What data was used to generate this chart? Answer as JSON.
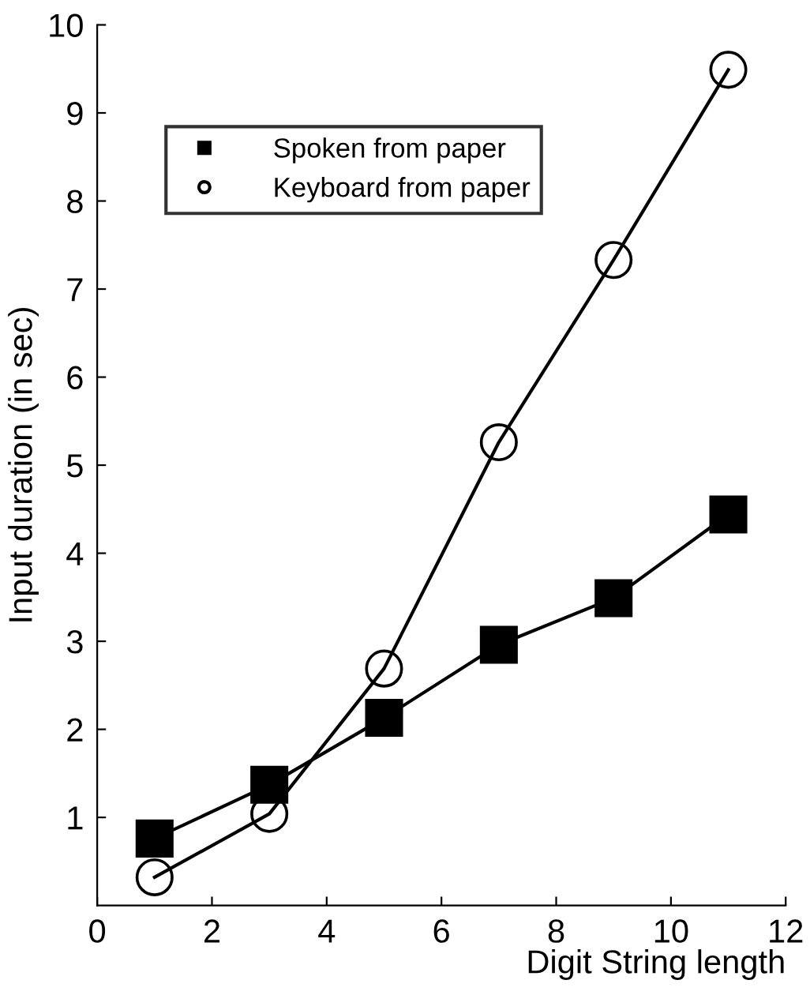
{
  "chart_data": {
    "type": "line",
    "xlabel": "Digit String length",
    "ylabel": "Input duration (in sec)",
    "x": [
      1,
      3,
      5,
      7,
      9,
      11
    ],
    "series": [
      {
        "name": "Spoken from paper",
        "color": "#000000",
        "marker": "square",
        "values": [
          0.76,
          1.37,
          2.13,
          2.96,
          3.49,
          4.44
        ]
      },
      {
        "name": "Keyboard from paper",
        "color": "#000000",
        "marker": "circle",
        "values": [
          0.32,
          1.04,
          2.69,
          5.26,
          7.33,
          9.49
        ]
      }
    ],
    "xlim": [
      0,
      12
    ],
    "xticks": [
      0,
      2,
      4,
      6,
      8,
      10,
      12
    ],
    "ylim": [
      0,
      10
    ],
    "yticks": [
      1,
      2,
      3,
      4,
      5,
      6,
      7,
      8,
      9,
      10
    ],
    "grid": false,
    "legend": "top left",
    "line_style": "solid"
  }
}
